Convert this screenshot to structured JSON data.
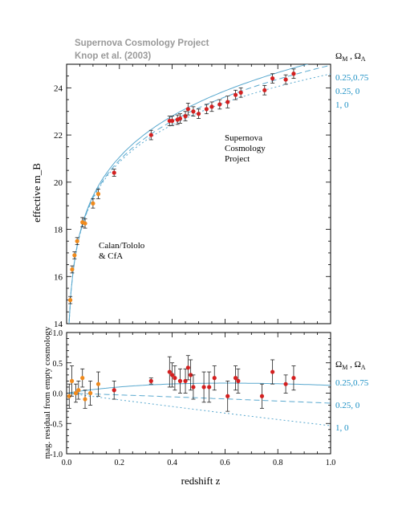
{
  "header": {
    "line1": "Supernova Cosmology Project",
    "line2": "Knop et al. (2003)"
  },
  "legend": {
    "heading_html": "Ω<tspan font-size='8' dy='3'>M</tspan><tspan dy='-3'> , Ω</tspan><tspan font-size='8' dy='3'>Λ</tspan>",
    "heading_text": "ΩM , ΩΛ",
    "entries": [
      "0.25,0.75",
      "0.25, 0",
      "1,    0"
    ],
    "color": "#1a8fc4"
  },
  "colors": {
    "curve": "#5aa9cf",
    "scp_point": "#d42020",
    "calan_point": "#f08a1c",
    "errorbar": "#222222",
    "frame": "#000000"
  },
  "chart_data": [
    {
      "type": "scatter",
      "panel": "top",
      "ylabel": "effective m_B",
      "xlim": [
        0,
        1.0
      ],
      "ylim": [
        14,
        25
      ],
      "yticks": [
        14,
        16,
        18,
        20,
        22,
        24
      ],
      "annotations": [
        "Supernova",
        "Cosmology",
        "Project",
        "Calan/Tololo",
        "& CfA"
      ],
      "series": [
        {
          "name": "Calan/Tololo & CfA",
          "points": [
            {
              "x": 0.014,
              "y": 15.0,
              "err": 0.15
            },
            {
              "x": 0.021,
              "y": 16.3,
              "err": 0.15
            },
            {
              "x": 0.03,
              "y": 16.9,
              "err": 0.15
            },
            {
              "x": 0.04,
              "y": 17.5,
              "err": 0.15
            },
            {
              "x": 0.06,
              "y": 18.3,
              "err": 0.2
            },
            {
              "x": 0.07,
              "y": 18.25,
              "err": 0.2
            },
            {
              "x": 0.1,
              "y": 19.1,
              "err": 0.2
            },
            {
              "x": 0.12,
              "y": 19.5,
              "err": 0.2
            }
          ]
        },
        {
          "name": "Supernova Cosmology Project",
          "points": [
            {
              "x": 0.18,
              "y": 20.4,
              "err": 0.15
            },
            {
              "x": 0.32,
              "y": 22.0,
              "err": 0.2
            },
            {
              "x": 0.39,
              "y": 22.6,
              "err": 0.2
            },
            {
              "x": 0.4,
              "y": 22.6,
              "err": 0.2
            },
            {
              "x": 0.42,
              "y": 22.65,
              "err": 0.2
            },
            {
              "x": 0.43,
              "y": 22.7,
              "err": 0.2
            },
            {
              "x": 0.45,
              "y": 22.8,
              "err": 0.2
            },
            {
              "x": 0.46,
              "y": 23.1,
              "err": 0.25
            },
            {
              "x": 0.48,
              "y": 23.0,
              "err": 0.2
            },
            {
              "x": 0.5,
              "y": 22.9,
              "err": 0.2
            },
            {
              "x": 0.53,
              "y": 23.1,
              "err": 0.2
            },
            {
              "x": 0.55,
              "y": 23.2,
              "err": 0.2
            },
            {
              "x": 0.58,
              "y": 23.3,
              "err": 0.2
            },
            {
              "x": 0.61,
              "y": 23.4,
              "err": 0.25
            },
            {
              "x": 0.64,
              "y": 23.7,
              "err": 0.2
            },
            {
              "x": 0.66,
              "y": 23.8,
              "err": 0.2
            },
            {
              "x": 0.75,
              "y": 23.9,
              "err": 0.2
            },
            {
              "x": 0.78,
              "y": 24.4,
              "err": 0.2
            },
            {
              "x": 0.83,
              "y": 24.35,
              "err": 0.2
            },
            {
              "x": 0.86,
              "y": 24.6,
              "err": 0.2
            }
          ]
        }
      ]
    },
    {
      "type": "scatter",
      "panel": "bottom",
      "ylabel": "mag. residual from empty cosmology",
      "xlabel": "redshift z",
      "xlim": [
        0,
        1.0
      ],
      "ylim": [
        -1.0,
        1.0
      ],
      "xticks": [
        "0.0",
        "0.2",
        "0.4",
        "0.6",
        "0.8",
        "1.0"
      ],
      "yticks": [
        "-1.0",
        "-0.5",
        "0.0",
        "0.5",
        "1.0"
      ],
      "series": [
        {
          "name": "Calan/Tololo & CfA",
          "points": [
            {
              "x": 0.01,
              "y": -0.05,
              "err": 0.2
            },
            {
              "x": 0.02,
              "y": 0.2,
              "err": 0.25
            },
            {
              "x": 0.035,
              "y": 0.0,
              "err": 0.15
            },
            {
              "x": 0.045,
              "y": 0.05,
              "err": 0.15
            },
            {
              "x": 0.06,
              "y": 0.25,
              "err": 0.15
            },
            {
              "x": 0.07,
              "y": -0.1,
              "err": 0.15
            },
            {
              "x": 0.09,
              "y": 0.0,
              "err": 0.2
            },
            {
              "x": 0.12,
              "y": 0.15,
              "err": 0.2
            }
          ]
        },
        {
          "name": "Supernova Cosmology Project",
          "points": [
            {
              "x": 0.18,
              "y": 0.05,
              "err": 0.15
            },
            {
              "x": 0.32,
              "y": 0.2,
              "err": 0.05
            },
            {
              "x": 0.39,
              "y": 0.35,
              "err": 0.25
            },
            {
              "x": 0.4,
              "y": 0.3,
              "err": 0.2
            },
            {
              "x": 0.41,
              "y": 0.25,
              "err": 0.2
            },
            {
              "x": 0.43,
              "y": 0.2,
              "err": 0.2
            },
            {
              "x": 0.45,
              "y": 0.2,
              "err": 0.2
            },
            {
              "x": 0.46,
              "y": 0.42,
              "err": 0.2
            },
            {
              "x": 0.47,
              "y": 0.3,
              "err": 0.25
            },
            {
              "x": 0.48,
              "y": 0.1,
              "err": 0.2
            },
            {
              "x": 0.52,
              "y": 0.1,
              "err": 0.25
            },
            {
              "x": 0.54,
              "y": 0.1,
              "err": 0.25
            },
            {
              "x": 0.56,
              "y": 0.25,
              "err": 0.2
            },
            {
              "x": 0.61,
              "y": -0.05,
              "err": 0.25
            },
            {
              "x": 0.64,
              "y": 0.25,
              "err": 0.2
            },
            {
              "x": 0.65,
              "y": 0.2,
              "err": 0.2
            },
            {
              "x": 0.74,
              "y": -0.05,
              "err": 0.2
            },
            {
              "x": 0.78,
              "y": 0.35,
              "err": 0.2
            },
            {
              "x": 0.83,
              "y": 0.15,
              "err": 0.15
            },
            {
              "x": 0.86,
              "y": 0.25,
              "err": 0.2
            }
          ]
        }
      ]
    }
  ]
}
